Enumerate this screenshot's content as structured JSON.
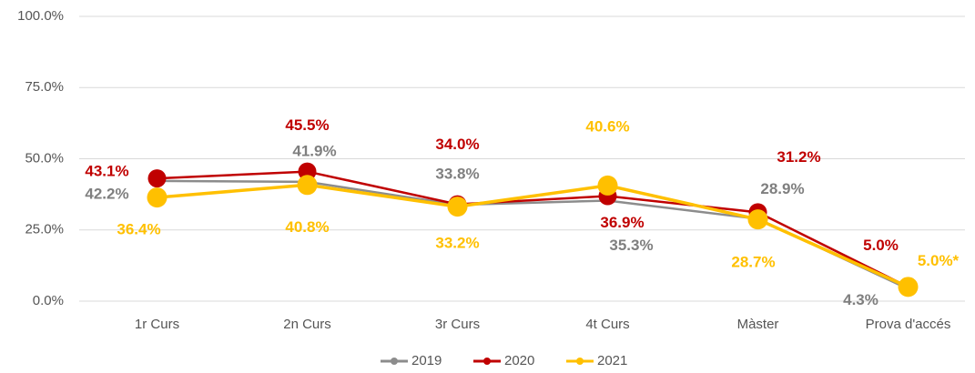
{
  "chart_data": {
    "type": "line",
    "categories": [
      "1r Curs",
      "2n Curs",
      "3r Curs",
      "4t Curs",
      "Màster",
      "Prova d'accés"
    ],
    "series": [
      {
        "name": "2019",
        "color": "#8c8c8c",
        "values": [
          42.2,
          41.9,
          33.8,
          35.3,
          28.9,
          4.3
        ],
        "value_labels": [
          "42.2%",
          "41.9%",
          "33.8%",
          "35.3%",
          "28.9%",
          "4.3%"
        ]
      },
      {
        "name": "2020",
        "color": "#c00000",
        "values": [
          43.1,
          45.5,
          34.0,
          36.9,
          31.2,
          5.0
        ],
        "value_labels": [
          "43.1%",
          "45.5%",
          "34.0%",
          "36.9%",
          "31.2%",
          "5.0%"
        ]
      },
      {
        "name": "2021",
        "color": "#ffc000",
        "values": [
          36.4,
          40.8,
          33.2,
          40.6,
          28.7,
          5.0
        ],
        "value_labels": [
          "36.4%",
          "40.8%",
          "33.2%",
          "40.6%",
          "28.7%",
          "5.0%*"
        ]
      }
    ],
    "ylim": [
      0,
      100
    ],
    "yticks": [
      {
        "value": 0,
        "label": "0.0%"
      },
      {
        "value": 25,
        "label": "25.0%"
      },
      {
        "value": 50,
        "label": "50.0%"
      },
      {
        "value": 75,
        "label": "75.0%"
      },
      {
        "value": 100,
        "label": "100.0%"
      }
    ],
    "grid": true,
    "legend": "bottom"
  }
}
